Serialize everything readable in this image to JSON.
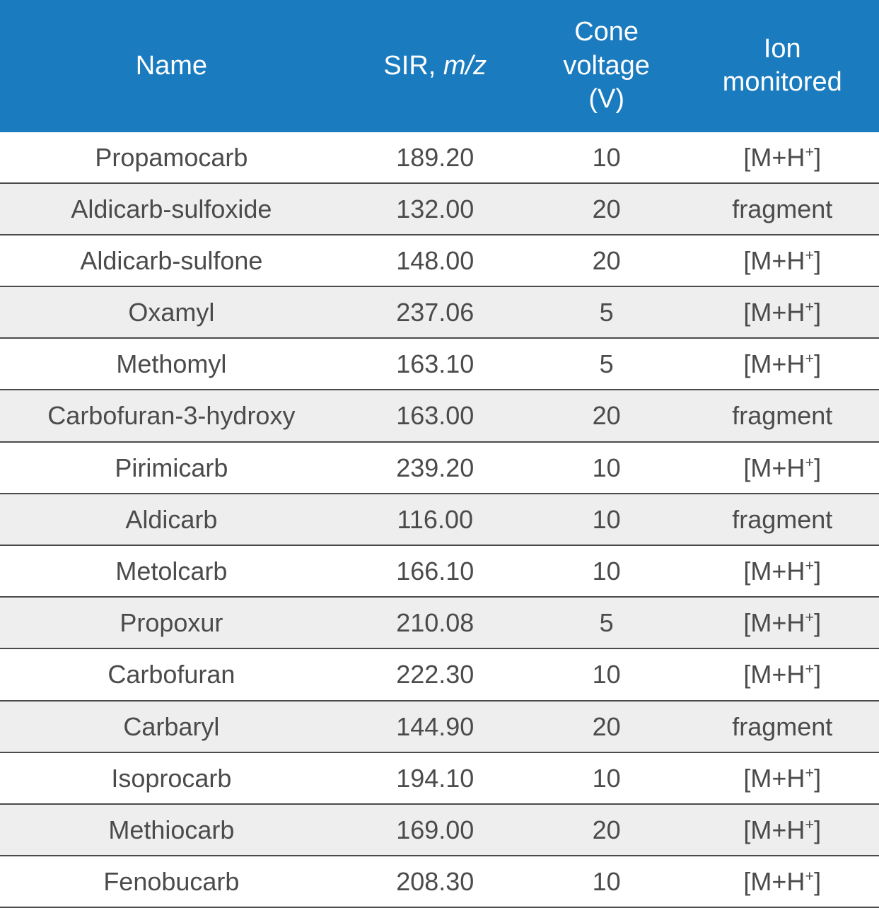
{
  "table": {
    "header_bg": "#1a7bbf",
    "header_color": "#ffffff",
    "row_even_bg": "#eeeeee",
    "row_odd_bg": "#ffffff",
    "border_color": "#4b4b4b",
    "text_color": "#4b4b4b",
    "header_fontsize": 38,
    "cell_fontsize": 36,
    "columns": [
      {
        "key": "name",
        "label_plain": "Name",
        "width_pct": 39
      },
      {
        "key": "sir",
        "label_plain": "SIR, m/z",
        "width_pct": 21,
        "label_prefix": "SIR, ",
        "label_italic": "m/z"
      },
      {
        "key": "cone",
        "label_plain": "Cone voltage (V)",
        "width_pct": 18,
        "label_line1": "Cone",
        "label_line2": "voltage",
        "label_line3": "(V)"
      },
      {
        "key": "ion",
        "label_plain": "Ion monitored",
        "width_pct": 22,
        "label_line1": "Ion",
        "label_line2": "monitored"
      }
    ],
    "ion_mh_display": "[M+H+]",
    "rows": [
      {
        "name": "Propamocarb",
        "sir": "189.20",
        "cone": "10",
        "ion_type": "mh"
      },
      {
        "name": "Aldicarb-sulfoxide",
        "sir": "132.00",
        "cone": "20",
        "ion_type": "fragment",
        "ion_text": "fragment"
      },
      {
        "name": "Aldicarb-sulfone",
        "sir": "148.00",
        "cone": "20",
        "ion_type": "mh"
      },
      {
        "name": "Oxamyl",
        "sir": "237.06",
        "cone": "5",
        "ion_type": "mh"
      },
      {
        "name": "Methomyl",
        "sir": "163.10",
        "cone": "5",
        "ion_type": "mh"
      },
      {
        "name": "Carbofuran-3-hydroxy",
        "sir": "163.00",
        "cone": "20",
        "ion_type": "fragment",
        "ion_text": "fragment"
      },
      {
        "name": "Pirimicarb",
        "sir": "239.20",
        "cone": "10",
        "ion_type": "mh"
      },
      {
        "name": "Aldicarb",
        "sir": "116.00",
        "cone": "10",
        "ion_type": "fragment",
        "ion_text": "fragment"
      },
      {
        "name": "Metolcarb",
        "sir": "166.10",
        "cone": "10",
        "ion_type": "mh"
      },
      {
        "name": "Propoxur",
        "sir": "210.08",
        "cone": "5",
        "ion_type": "mh"
      },
      {
        "name": "Carbofuran",
        "sir": "222.30",
        "cone": "10",
        "ion_type": "mh"
      },
      {
        "name": "Carbaryl",
        "sir": "144.90",
        "cone": "20",
        "ion_type": "fragment",
        "ion_text": "fragment"
      },
      {
        "name": "Isoprocarb",
        "sir": "194.10",
        "cone": "10",
        "ion_type": "mh"
      },
      {
        "name": "Methiocarb",
        "sir": "169.00",
        "cone": "20",
        "ion_type": "mh"
      },
      {
        "name": "Fenobucarb",
        "sir": "208.30",
        "cone": "10",
        "ion_type": "mh"
      }
    ]
  }
}
